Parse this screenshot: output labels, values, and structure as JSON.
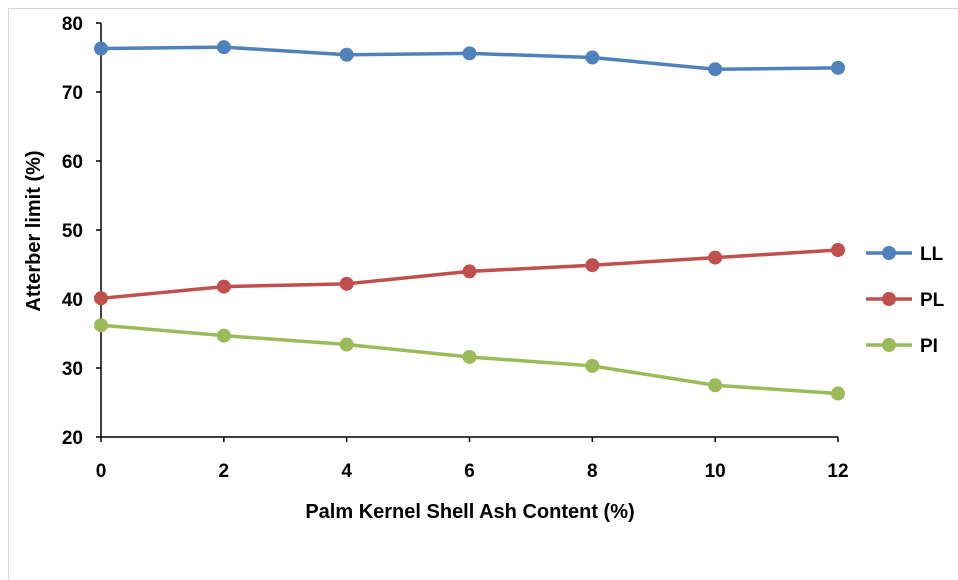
{
  "chart_data": {
    "type": "line",
    "title": "",
    "xlabel": "Palm Kernel Shell Ash Content (%)",
    "ylabel": "Atterber limit (%)",
    "x": [
      0,
      2,
      4,
      6,
      8,
      10,
      12
    ],
    "x_ticks": [
      "0",
      "2",
      "4",
      "6",
      "8",
      "10",
      "12"
    ],
    "y_ticks": [
      "20",
      "30",
      "40",
      "50",
      "60",
      "70",
      "80"
    ],
    "xlim": [
      0,
      12
    ],
    "ylim": [
      20,
      80
    ],
    "grid": false,
    "legend_position": "right",
    "series": [
      {
        "name": "LL",
        "color": "#4f81bd",
        "values": [
          76.3,
          76.5,
          75.4,
          75.6,
          75.0,
          73.3,
          73.5
        ]
      },
      {
        "name": "PL",
        "color": "#c0504d",
        "values": [
          40.1,
          41.8,
          42.2,
          44.0,
          44.9,
          46.0,
          47.1
        ]
      },
      {
        "name": "PI",
        "color": "#9bbb59",
        "values": [
          36.2,
          34.7,
          33.4,
          31.6,
          30.3,
          27.5,
          26.3
        ]
      }
    ]
  }
}
